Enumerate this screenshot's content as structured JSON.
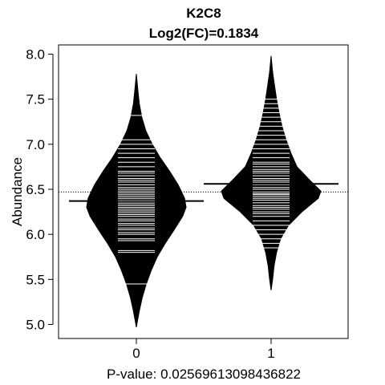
{
  "chart_data": {
    "type": "beanplot",
    "title": "K2C8",
    "subtitle": "Log2(FC)=0.1834",
    "ylabel": "Abundance",
    "xlabel": "P-value: 0.0256961309843682",
    "xlabel_shown": "P-value: 0.02569613098436822",
    "ylim": [
      4.95,
      8.08
    ],
    "yticks": [
      5.0,
      5.5,
      6.0,
      6.5,
      7.0,
      7.5,
      8.0
    ],
    "ytick_labels": [
      "5.0",
      "5.5",
      "6.0",
      "6.5",
      "7.0",
      "7.5",
      "8.0"
    ],
    "categories": [
      "0",
      "1"
    ],
    "overall_mean": 6.47,
    "grid": false,
    "groups": [
      {
        "category": "0",
        "mean": 6.37,
        "range": [
          4.97,
          7.78
        ],
        "density": [
          [
            4.97,
            0.0
          ],
          [
            5.15,
            0.06
          ],
          [
            5.3,
            0.12
          ],
          [
            5.45,
            0.2
          ],
          [
            5.6,
            0.3
          ],
          [
            5.75,
            0.42
          ],
          [
            5.9,
            0.58
          ],
          [
            6.05,
            0.76
          ],
          [
            6.2,
            0.93
          ],
          [
            6.3,
            1.0
          ],
          [
            6.4,
            0.97
          ],
          [
            6.55,
            0.84
          ],
          [
            6.7,
            0.67
          ],
          [
            6.85,
            0.48
          ],
          [
            7.0,
            0.32
          ],
          [
            7.15,
            0.19
          ],
          [
            7.3,
            0.11
          ],
          [
            7.45,
            0.06
          ],
          [
            7.6,
            0.03
          ],
          [
            7.78,
            0.0
          ]
        ],
        "observations": [
          5.45,
          5.8,
          5.82,
          5.93,
          5.95,
          6.0,
          6.02,
          6.05,
          6.07,
          6.1,
          6.12,
          6.15,
          6.17,
          6.2,
          6.22,
          6.24,
          6.26,
          6.28,
          6.3,
          6.32,
          6.34,
          6.36,
          6.38,
          6.4,
          6.42,
          6.44,
          6.46,
          6.48,
          6.5,
          6.52,
          6.55,
          6.58,
          6.6,
          6.62,
          6.65,
          6.68,
          6.7,
          6.75,
          6.8,
          6.85,
          6.9,
          6.95,
          7.0,
          7.05,
          7.32
        ]
      },
      {
        "category": "1",
        "mean": 6.56,
        "range": [
          5.38,
          7.98
        ],
        "density": [
          [
            5.38,
            0.0
          ],
          [
            5.5,
            0.03
          ],
          [
            5.65,
            0.06
          ],
          [
            5.8,
            0.11
          ],
          [
            5.95,
            0.19
          ],
          [
            6.1,
            0.35
          ],
          [
            6.25,
            0.62
          ],
          [
            6.4,
            0.95
          ],
          [
            6.48,
            1.0
          ],
          [
            6.6,
            0.78
          ],
          [
            6.75,
            0.52
          ],
          [
            6.9,
            0.4
          ],
          [
            7.05,
            0.3
          ],
          [
            7.2,
            0.22
          ],
          [
            7.35,
            0.16
          ],
          [
            7.5,
            0.11
          ],
          [
            7.65,
            0.07
          ],
          [
            7.8,
            0.03
          ],
          [
            7.98,
            0.0
          ]
        ],
        "observations": [
          5.85,
          5.9,
          5.95,
          6.0,
          6.05,
          6.1,
          6.15,
          6.2,
          6.23,
          6.25,
          6.28,
          6.3,
          6.32,
          6.35,
          6.38,
          6.4,
          6.42,
          6.44,
          6.45,
          6.47,
          6.5,
          6.52,
          6.55,
          6.58,
          6.6,
          6.62,
          6.65,
          6.68,
          6.7,
          6.72,
          6.75,
          6.78,
          6.8,
          6.85,
          6.9,
          6.95,
          7.0,
          7.05,
          7.1,
          7.15,
          7.2,
          7.25,
          7.3,
          7.35,
          7.4,
          7.45,
          7.5
        ]
      }
    ]
  }
}
